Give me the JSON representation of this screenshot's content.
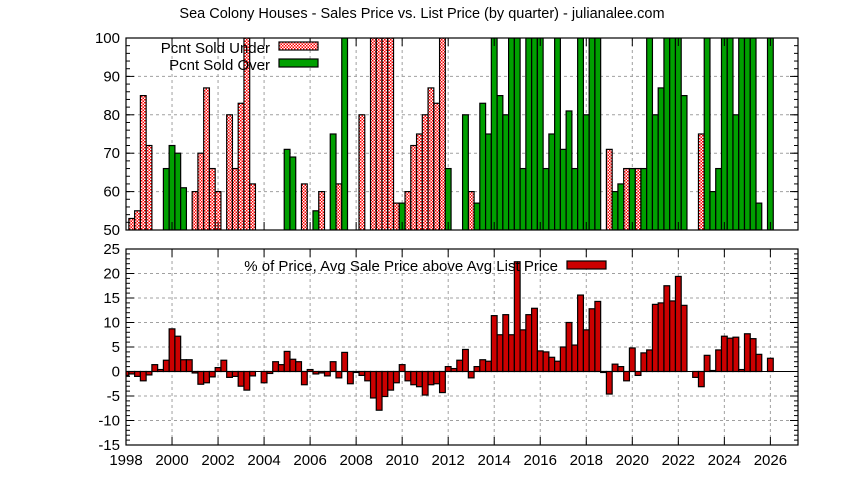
{
  "chart_data": [
    {
      "type": "bar",
      "title": "Sea Colony Houses - Sales Price vs. List Price (by quarter) - julianalee.com",
      "xlim": [
        1998,
        2027.2
      ],
      "ylim": [
        50,
        100
      ],
      "xticks": [
        1998,
        2000,
        2002,
        2004,
        2006,
        2008,
        2010,
        2012,
        2014,
        2016,
        2018,
        2020,
        2022,
        2024,
        2026
      ],
      "yticks": [
        50,
        60,
        70,
        80,
        90,
        100
      ],
      "grid": true,
      "legend_position": "top-left",
      "bar_width_years": 0.25,
      "series": [
        {
          "name": "Pcnt Sold Under",
          "color": "#ff0000",
          "fill": "checker",
          "points": [
            [
              1998.25,
              53
            ],
            [
              1998.5,
              55
            ],
            [
              1998.75,
              85
            ],
            [
              1999.0,
              72
            ],
            [
              2001.0,
              60
            ],
            [
              2001.25,
              70
            ],
            [
              2001.5,
              87
            ],
            [
              2001.75,
              66
            ],
            [
              2002.0,
              60
            ],
            [
              2002.5,
              80
            ],
            [
              2002.75,
              66
            ],
            [
              2003.0,
              83
            ],
            [
              2003.25,
              100
            ],
            [
              2003.5,
              62
            ],
            [
              2005.75,
              62
            ],
            [
              2006.5,
              60
            ],
            [
              2007.25,
              62
            ],
            [
              2008.25,
              80
            ],
            [
              2008.75,
              100
            ],
            [
              2009.0,
              100
            ],
            [
              2009.25,
              100
            ],
            [
              2009.5,
              100
            ],
            [
              2009.75,
              57
            ],
            [
              2010.25,
              60
            ],
            [
              2010.5,
              72
            ],
            [
              2010.75,
              75
            ],
            [
              2011.0,
              80
            ],
            [
              2011.25,
              87
            ],
            [
              2011.5,
              83
            ],
            [
              2011.75,
              100
            ],
            [
              2013.0,
              60
            ],
            [
              2019.0,
              71
            ],
            [
              2019.75,
              66
            ],
            [
              2020.25,
              66
            ],
            [
              2023.0,
              75
            ]
          ]
        },
        {
          "name": "Pcnt Sold Over",
          "color": "#00a000",
          "fill": "solid",
          "points": [
            [
              1999.75,
              66
            ],
            [
              2000.0,
              72
            ],
            [
              2000.25,
              70
            ],
            [
              2000.5,
              61
            ],
            [
              2005.0,
              71
            ],
            [
              2005.25,
              69
            ],
            [
              2006.25,
              55
            ],
            [
              2007.0,
              75
            ],
            [
              2007.5,
              100
            ],
            [
              2010.0,
              57
            ],
            [
              2012.0,
              66
            ],
            [
              2012.75,
              80
            ],
            [
              2013.25,
              57
            ],
            [
              2013.5,
              83
            ],
            [
              2013.75,
              75
            ],
            [
              2014.0,
              100
            ],
            [
              2014.25,
              85
            ],
            [
              2014.5,
              80
            ],
            [
              2014.75,
              100
            ],
            [
              2015.0,
              100
            ],
            [
              2015.25,
              66
            ],
            [
              2015.5,
              100
            ],
            [
              2015.75,
              100
            ],
            [
              2016.0,
              100
            ],
            [
              2016.25,
              66
            ],
            [
              2016.5,
              75
            ],
            [
              2016.75,
              100
            ],
            [
              2017.0,
              71
            ],
            [
              2017.25,
              81
            ],
            [
              2017.5,
              66
            ],
            [
              2017.75,
              100
            ],
            [
              2018.0,
              80
            ],
            [
              2018.25,
              100
            ],
            [
              2018.5,
              100
            ],
            [
              2019.25,
              60
            ],
            [
              2019.5,
              62
            ],
            [
              2020.0,
              66
            ],
            [
              2020.5,
              66
            ],
            [
              2020.75,
              100
            ],
            [
              2021.0,
              80
            ],
            [
              2021.25,
              87
            ],
            [
              2021.5,
              100
            ],
            [
              2021.75,
              100
            ],
            [
              2022.0,
              100
            ],
            [
              2022.25,
              85
            ],
            [
              2023.25,
              100
            ],
            [
              2023.5,
              60
            ],
            [
              2023.75,
              66
            ],
            [
              2024.0,
              100
            ],
            [
              2024.25,
              100
            ],
            [
              2024.5,
              80
            ],
            [
              2024.75,
              100
            ],
            [
              2025.0,
              100
            ],
            [
              2025.25,
              100
            ],
            [
              2025.5,
              57
            ],
            [
              2026.0,
              100
            ]
          ]
        }
      ]
    },
    {
      "type": "bar",
      "xlim": [
        1998,
        2027.2
      ],
      "ylim": [
        -15,
        25
      ],
      "xticks": [
        1998,
        2000,
        2002,
        2004,
        2006,
        2008,
        2010,
        2012,
        2014,
        2016,
        2018,
        2020,
        2022,
        2024,
        2026
      ],
      "yticks": [
        -15,
        -10,
        -5,
        0,
        5,
        10,
        15,
        20,
        25
      ],
      "grid": true,
      "legend_position": "top-center",
      "bar_width_years": 0.25,
      "series": [
        {
          "name": "% of Price, Avg Sale Price above Avg List Price",
          "color": "#cc0000",
          "fill": "solid",
          "points": [
            [
              1998.0,
              -0.8
            ],
            [
              1998.25,
              -0.5
            ],
            [
              1998.5,
              -1
            ],
            [
              1998.75,
              -1.9
            ],
            [
              1999.0,
              -0.7
            ],
            [
              1999.25,
              1.4
            ],
            [
              1999.5,
              0.4
            ],
            [
              1999.75,
              2.3
            ],
            [
              2000.0,
              8.7
            ],
            [
              2000.25,
              7.2
            ],
            [
              2000.5,
              2.4
            ],
            [
              2000.75,
              2.4
            ],
            [
              2001.0,
              -0.3
            ],
            [
              2001.25,
              -2.6
            ],
            [
              2001.5,
              -2.3
            ],
            [
              2001.75,
              -1.1
            ],
            [
              2002.0,
              0.8
            ],
            [
              2002.25,
              2.3
            ],
            [
              2002.5,
              -1.2
            ],
            [
              2002.75,
              -1
            ],
            [
              2003.0,
              -3
            ],
            [
              2003.25,
              -3.8
            ],
            [
              2003.5,
              -0.9
            ],
            [
              2004.0,
              -2.3
            ],
            [
              2004.25,
              -0.4
            ],
            [
              2004.5,
              2
            ],
            [
              2004.75,
              1.4
            ],
            [
              2005.0,
              4.1
            ],
            [
              2005.25,
              2.5
            ],
            [
              2005.5,
              2
            ],
            [
              2005.75,
              -2.7
            ],
            [
              2006.0,
              0.4
            ],
            [
              2006.25,
              -0.5
            ],
            [
              2006.5,
              -0.3
            ],
            [
              2006.75,
              -0.9
            ],
            [
              2007.0,
              2
            ],
            [
              2007.25,
              -1.3
            ],
            [
              2007.5,
              3.9
            ],
            [
              2007.75,
              -2.5
            ],
            [
              2008.0,
              -0.2
            ],
            [
              2008.25,
              -0.8
            ],
            [
              2008.5,
              -1.9
            ],
            [
              2008.75,
              -5.4
            ],
            [
              2009.0,
              -7.9
            ],
            [
              2009.25,
              -5.1
            ],
            [
              2009.5,
              -3.8
            ],
            [
              2009.75,
              -2.3
            ],
            [
              2010.0,
              1.4
            ],
            [
              2010.25,
              -1.9
            ],
            [
              2010.5,
              -2.7
            ],
            [
              2010.75,
              -3.1
            ],
            [
              2011.0,
              -4.8
            ],
            [
              2011.25,
              -2.7
            ],
            [
              2011.5,
              -2.5
            ],
            [
              2011.75,
              -4.3
            ],
            [
              2012.0,
              1
            ],
            [
              2012.25,
              0.6
            ],
            [
              2012.5,
              2.3
            ],
            [
              2012.75,
              4.5
            ],
            [
              2013.0,
              -1.3
            ],
            [
              2013.25,
              1
            ],
            [
              2013.5,
              2.4
            ],
            [
              2013.75,
              2.1
            ],
            [
              2014.0,
              11.4
            ],
            [
              2014.25,
              7.5
            ],
            [
              2014.5,
              11.6
            ],
            [
              2014.75,
              7.5
            ],
            [
              2015.0,
              22.4
            ],
            [
              2015.25,
              8.5
            ],
            [
              2015.5,
              11.6
            ],
            [
              2015.75,
              12.9
            ],
            [
              2016.0,
              4.2
            ],
            [
              2016.25,
              4
            ],
            [
              2016.5,
              2.9
            ],
            [
              2016.75,
              2.1
            ],
            [
              2017.0,
              5
            ],
            [
              2017.25,
              10
            ],
            [
              2017.5,
              5.4
            ],
            [
              2017.75,
              15.6
            ],
            [
              2018.0,
              8.5
            ],
            [
              2018.25,
              12.8
            ],
            [
              2018.5,
              14.3
            ],
            [
              2018.75,
              -0.2
            ],
            [
              2019.0,
              -4.6
            ],
            [
              2019.25,
              1.5
            ],
            [
              2019.5,
              1
            ],
            [
              2019.75,
              -1.9
            ],
            [
              2020.0,
              4.8
            ],
            [
              2020.25,
              -0.8
            ],
            [
              2020.5,
              3.8
            ],
            [
              2020.75,
              4.4
            ],
            [
              2021.0,
              13.7
            ],
            [
              2021.25,
              14
            ],
            [
              2021.5,
              17.5
            ],
            [
              2021.75,
              14.4
            ],
            [
              2022.0,
              19.4
            ],
            [
              2022.25,
              13.5
            ],
            [
              2022.75,
              -1.2
            ],
            [
              2023.0,
              -3.1
            ],
            [
              2023.25,
              3.3
            ],
            [
              2023.5,
              0.2
            ],
            [
              2023.75,
              4.4
            ],
            [
              2024.0,
              7.2
            ],
            [
              2024.25,
              6.8
            ],
            [
              2024.5,
              7
            ],
            [
              2024.75,
              0.4
            ],
            [
              2025.0,
              7.7
            ],
            [
              2025.25,
              6.7
            ],
            [
              2025.5,
              3.5
            ],
            [
              2026.0,
              2.7
            ]
          ]
        }
      ]
    }
  ]
}
